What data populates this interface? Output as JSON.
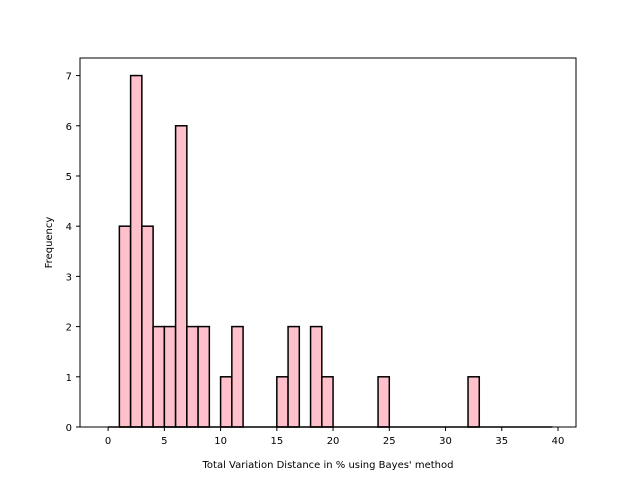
{
  "chart_data": {
    "type": "bar",
    "xlabel": "Total Variation Distance in % using Bayes' method",
    "ylabel": "Frequency",
    "xlim": [
      -2.5,
      41.6
    ],
    "ylim": [
      0,
      7.35
    ],
    "xticks": [
      0,
      5,
      10,
      15,
      20,
      25,
      30,
      35,
      40
    ],
    "yticks": [
      0,
      1,
      2,
      3,
      4,
      5,
      6,
      7
    ],
    "bin_width": 1,
    "bins": [
      {
        "x": 1,
        "count": 4
      },
      {
        "x": 2,
        "count": 7
      },
      {
        "x": 3,
        "count": 4
      },
      {
        "x": 4,
        "count": 2
      },
      {
        "x": 5,
        "count": 2
      },
      {
        "x": 6,
        "count": 6
      },
      {
        "x": 7,
        "count": 2
      },
      {
        "x": 8,
        "count": 2
      },
      {
        "x": 10,
        "count": 1
      },
      {
        "x": 11,
        "count": 2
      },
      {
        "x": 15,
        "count": 1
      },
      {
        "x": 16,
        "count": 2
      },
      {
        "x": 18,
        "count": 2
      },
      {
        "x": 19,
        "count": 1
      },
      {
        "x": 24,
        "count": 1
      },
      {
        "x": 32,
        "count": 1
      }
    ],
    "baseline_range": [
      0,
      39.5
    ],
    "bar_color": "#ffc0cb",
    "edge_color": "#000000",
    "grid": false
  }
}
